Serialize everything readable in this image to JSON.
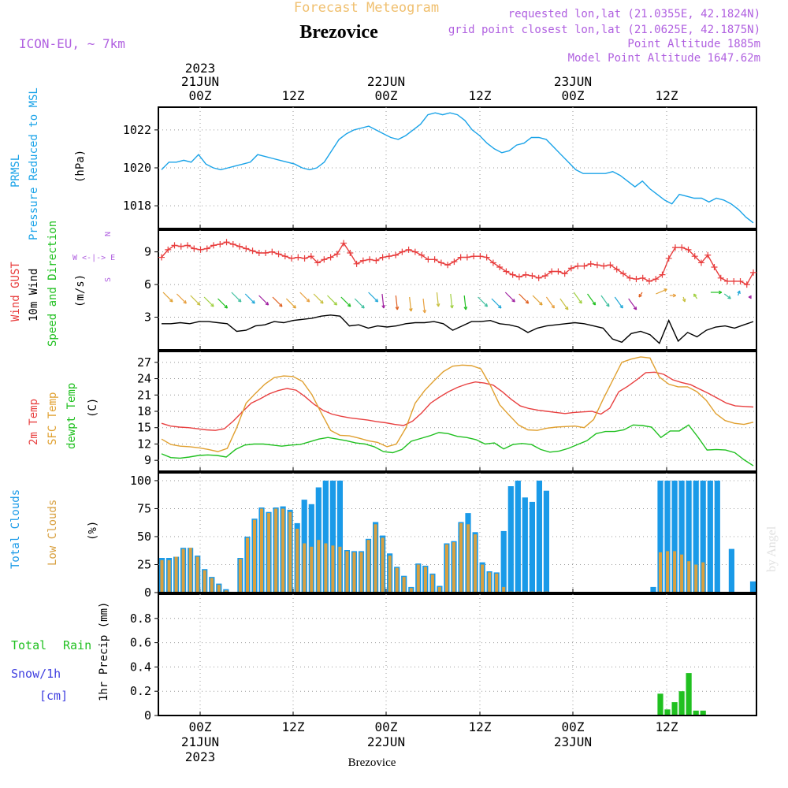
{
  "header": {
    "super_title": "Forecast Meteogram",
    "title": "Brezovice",
    "model": "ICON-EU, ~ 7km",
    "info_lines": [
      "requested lon,lat (21.0355E, 42.1824N)",
      "grid point closest lon,lat (21.0625E, 42.1875N)",
      "Point Altitude 1885m",
      "Model Point Altitude 1647.62m"
    ],
    "bottom_label": "Brezovice",
    "watermark": "by Angel"
  },
  "time_axis": {
    "top_year": "2023",
    "top_dates": [
      "21JUN",
      "22JUN",
      "23JUN"
    ],
    "hour_labels": [
      "00Z",
      "12Z",
      "00Z",
      "12Z",
      "00Z",
      "12Z"
    ],
    "bottom_dates": [
      "21JUN",
      "22JUN",
      "23JUN"
    ],
    "bottom_year": "2023"
  },
  "colors": {
    "pressure": "#1aa3e8",
    "gust": "#e83c3c",
    "wind": "#000000",
    "temp2m": "#e84040",
    "sfc": "#e0a030",
    "dewpt": "#20c020",
    "total_clouds": "#1a9ae8",
    "low_clouds": "#d8a040",
    "rain": "#20c020",
    "snow": "#4040e0",
    "label_purple": "#b060e0",
    "title_orange": "#f0c070"
  },
  "panel_labels": {
    "pressure": [
      "PRMSL",
      "Pressure Reduced to MSL"
    ],
    "pressure_unit": "(hPa)",
    "wind": [
      "Wind GUST",
      "10m Wind",
      "Speed and Direction"
    ],
    "wind_unit": "(m/s)",
    "compass": [
      "N",
      "W <-|-> E",
      "S"
    ],
    "temp": [
      "2m Temp",
      "SFC Temp",
      "dewpt Temp"
    ],
    "temp_unit": "(C)",
    "clouds": [
      "Total Clouds",
      "Low Clouds"
    ],
    "clouds_unit": "(%)",
    "precip": [
      "Total",
      "Rain",
      "Snow/1h",
      "[cm]"
    ],
    "precip_unit": "1hr Precip (mm)"
  },
  "chart_data": [
    {
      "type": "line",
      "panel": "pressure",
      "y_ticks": [
        1018,
        1020,
        1022
      ],
      "ylim": [
        1016.8,
        1023.2
      ],
      "series": [
        {
          "name": "PRMSL",
          "values": [
            1019.9,
            1020.3,
            1020.3,
            1020.4,
            1020.3,
            1020.7,
            1020.2,
            1020.0,
            1019.9,
            1020.0,
            1020.1,
            1020.2,
            1020.3,
            1020.7,
            1020.6,
            1020.5,
            1020.4,
            1020.3,
            1020.2,
            1020.0,
            1019.9,
            1020.0,
            1020.3,
            1020.9,
            1021.5,
            1021.8,
            1022.0,
            1022.1,
            1022.2,
            1022.0,
            1021.8,
            1021.6,
            1021.5,
            1021.7,
            1022.0,
            1022.3,
            1022.8,
            1022.9,
            1022.8,
            1022.9,
            1022.8,
            1022.5,
            1022.0,
            1021.7,
            1021.3,
            1021.0,
            1020.8,
            1020.9,
            1021.2,
            1021.3,
            1021.6,
            1021.6,
            1021.5,
            1021.1,
            1020.7,
            1020.3,
            1019.9,
            1019.7,
            1019.7,
            1019.7,
            1019.7,
            1019.8,
            1019.6,
            1019.3,
            1019.0,
            1019.3,
            1018.9,
            1018.6,
            1018.3,
            1018.1,
            1018.6,
            1018.5,
            1018.4,
            1018.4,
            1018.2,
            1018.4,
            1018.3,
            1018.1,
            1017.8,
            1017.4,
            1017.1
          ]
        }
      ]
    },
    {
      "type": "line",
      "panel": "wind",
      "y_ticks": [
        3,
        6,
        9
      ],
      "ylim": [
        0,
        11
      ],
      "series": [
        {
          "name": "Wind GUST",
          "values": [
            8.5,
            9.2,
            9.6,
            9.5,
            9.6,
            9.3,
            9.2,
            9.3,
            9.6,
            9.7,
            9.9,
            9.7,
            9.5,
            9.3,
            9.1,
            8.9,
            8.9,
            9.0,
            8.8,
            8.6,
            8.4,
            8.5,
            8.4,
            8.6,
            8.0,
            8.3,
            8.5,
            8.8,
            9.8,
            8.9,
            7.9,
            8.2,
            8.3,
            8.2,
            8.5,
            8.6,
            8.7,
            9.0,
            9.2,
            9.0,
            8.7,
            8.3,
            8.3,
            8.0,
            7.8,
            8.1,
            8.5,
            8.5,
            8.6,
            8.6,
            8.5,
            8.0,
            7.6,
            7.2,
            6.9,
            6.7,
            6.9,
            6.8,
            6.6,
            6.8,
            7.2,
            7.2,
            7.0,
            7.5,
            7.7,
            7.7,
            7.9,
            7.8,
            7.7,
            7.8,
            7.4,
            7.0,
            6.6,
            6.5,
            6.6,
            6.3,
            6.5,
            6.9,
            8.4,
            9.4,
            9.4,
            9.2,
            8.6,
            8.0,
            8.7,
            7.6,
            6.6,
            6.3,
            6.3,
            6.3,
            6.0,
            7.1
          ]
        },
        {
          "name": "10m Wind",
          "values": [
            2.4,
            2.4,
            2.5,
            2.4,
            2.6,
            2.6,
            2.5,
            2.4,
            1.7,
            1.8,
            2.2,
            2.3,
            2.6,
            2.5,
            2.7,
            2.8,
            2.9,
            3.1,
            3.2,
            3.1,
            2.2,
            2.3,
            2.0,
            2.2,
            2.1,
            2.2,
            2.4,
            2.5,
            2.5,
            2.6,
            2.4,
            1.8,
            2.2,
            2.6,
            2.6,
            2.7,
            2.4,
            2.3,
            2.1,
            1.6,
            2.0,
            2.2,
            2.3,
            2.4,
            2.5,
            2.4,
            2.2,
            2.0,
            1.0,
            0.7,
            1.5,
            1.7,
            1.4,
            0.6,
            2.7,
            0.8,
            1.6,
            1.2,
            1.8,
            2.1,
            2.2,
            2.0,
            2.3,
            2.6
          ]
        }
      ]
    },
    {
      "type": "line",
      "panel": "temperature",
      "y_ticks": [
        9,
        12,
        15,
        18,
        21,
        24,
        27
      ],
      "ylim": [
        7,
        29
      ],
      "series": [
        {
          "name": "2m Temp",
          "values": [
            15.8,
            15.3,
            15.1,
            15.0,
            14.8,
            14.6,
            14.5,
            14.8,
            16.2,
            17.9,
            19.5,
            20.3,
            21.2,
            21.8,
            22.2,
            21.9,
            20.7,
            19.3,
            18.2,
            17.5,
            17.1,
            16.8,
            16.6,
            16.4,
            16.1,
            15.9,
            15.6,
            15.4,
            16.2,
            17.7,
            19.5,
            20.6,
            21.6,
            22.4,
            23.0,
            23.4,
            23.2,
            22.8,
            21.6,
            20.2,
            19.0,
            18.5,
            18.2,
            18.0,
            17.8,
            17.6,
            17.8,
            17.9,
            18.0,
            17.5,
            18.6,
            21.6,
            22.6,
            23.8,
            25.1,
            25.2,
            24.8,
            23.8,
            23.3,
            22.9,
            22.1,
            21.3,
            20.4,
            19.5,
            19.0,
            18.9,
            18.8
          ]
        },
        {
          "name": "SFC Temp",
          "values": [
            12.9,
            11.9,
            11.6,
            11.5,
            11.3,
            11.0,
            10.6,
            11.2,
            15.0,
            19.5,
            21.3,
            23.0,
            24.2,
            24.5,
            24.4,
            23.5,
            21.1,
            17.7,
            14.5,
            13.6,
            13.5,
            13.1,
            12.6,
            12.3,
            11.5,
            12.0,
            14.9,
            19.5,
            21.8,
            23.6,
            25.3,
            26.3,
            26.5,
            26.4,
            25.8,
            22.8,
            19.2,
            17.3,
            15.5,
            14.6,
            14.5,
            14.9,
            15.1,
            15.2,
            15.3,
            15.0,
            16.5,
            20.2,
            23.6,
            27.0,
            27.6,
            28.0,
            27.8,
            24.3,
            23.0,
            22.5,
            22.5,
            21.6,
            20.0,
            17.6,
            16.3,
            15.8,
            15.6,
            16.0
          ]
        },
        {
          "name": "dewpt Temp",
          "values": [
            10.2,
            9.5,
            9.4,
            9.6,
            9.9,
            10.0,
            9.9,
            9.6,
            11.0,
            11.8,
            12.0,
            12.0,
            11.8,
            11.6,
            11.8,
            11.9,
            12.4,
            12.9,
            13.2,
            12.9,
            12.6,
            12.2,
            12.0,
            11.5,
            10.6,
            10.4,
            11.0,
            12.5,
            13.0,
            13.5,
            14.1,
            13.9,
            13.4,
            13.2,
            12.8,
            12.0,
            12.2,
            11.1,
            11.9,
            12.1,
            11.9,
            11.0,
            10.5,
            10.7,
            11.2,
            11.9,
            12.6,
            13.9,
            14.3,
            14.3,
            14.6,
            15.5,
            15.4,
            15.1,
            13.2,
            14.4,
            14.4,
            15.5,
            13.3,
            10.9,
            11.0,
            10.9,
            10.4,
            9.1,
            8.0
          ]
        }
      ]
    },
    {
      "type": "bar",
      "panel": "clouds",
      "y_ticks": [
        0,
        25,
        50,
        75,
        100
      ],
      "ylim": [
        0,
        107
      ],
      "series": [
        {
          "name": "Total Clouds",
          "values": [
            31,
            31,
            32,
            40,
            40,
            33,
            21,
            14,
            8,
            3,
            0,
            31,
            50,
            66,
            76,
            72,
            76,
            77,
            74,
            62,
            83,
            79,
            94,
            100,
            100,
            100,
            38,
            37,
            37,
            48,
            63,
            51,
            35,
            23,
            15,
            5,
            26,
            24,
            17,
            6,
            44,
            46,
            63,
            71,
            54,
            27,
            19,
            18,
            55,
            95,
            100,
            85,
            81,
            100,
            91,
            0,
            0,
            0,
            0,
            0,
            0,
            0,
            0,
            0,
            0,
            0,
            0,
            0,
            0,
            5,
            100,
            100,
            100,
            100,
            100,
            100,
            100,
            100,
            100,
            0,
            39,
            0,
            0,
            10
          ]
        },
        {
          "name": "Low Clouds",
          "values": [
            29,
            29,
            32,
            39,
            40,
            32,
            20,
            13,
            7,
            2,
            0,
            30,
            49,
            65,
            75,
            71,
            75,
            75,
            72,
            57,
            44,
            41,
            47,
            44,
            42,
            41,
            37,
            36,
            36,
            47,
            61,
            49,
            33,
            22,
            14,
            4,
            25,
            23,
            16,
            5,
            43,
            45,
            62,
            61,
            52,
            25,
            18,
            17,
            5,
            1,
            1,
            1,
            1,
            1,
            1,
            0,
            0,
            0,
            0,
            0,
            0,
            0,
            0,
            0,
            0,
            0,
            0,
            0,
            0,
            0,
            36,
            37,
            37,
            34,
            28,
            25,
            27,
            0,
            0,
            0,
            0,
            0,
            0,
            0
          ]
        }
      ]
    },
    {
      "type": "bar",
      "panel": "precipitation",
      "y_ticks": [
        0,
        0.2,
        0.4,
        0.6,
        0.8
      ],
      "ylim": [
        0,
        1.0
      ],
      "series": [
        {
          "name": "Total Rain",
          "values": [
            0,
            0,
            0,
            0,
            0,
            0,
            0,
            0,
            0,
            0,
            0,
            0,
            0,
            0,
            0,
            0,
            0,
            0,
            0,
            0,
            0,
            0,
            0,
            0,
            0,
            0,
            0,
            0,
            0,
            0,
            0,
            0,
            0,
            0,
            0,
            0,
            0,
            0,
            0,
            0,
            0,
            0,
            0,
            0,
            0,
            0,
            0,
            0,
            0,
            0,
            0,
            0,
            0,
            0,
            0,
            0,
            0,
            0,
            0,
            0,
            0,
            0,
            0,
            0,
            0,
            0,
            0,
            0,
            0,
            0,
            0.18,
            0.05,
            0.11,
            0.2,
            0.35,
            0.04,
            0.04,
            0,
            0,
            0,
            0,
            0,
            0,
            0
          ]
        }
      ]
    }
  ]
}
